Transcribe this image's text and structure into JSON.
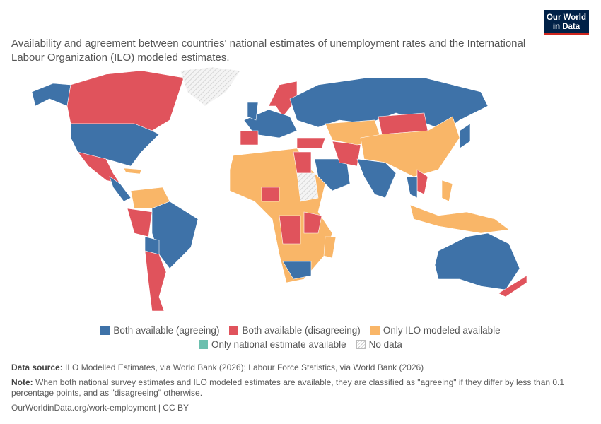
{
  "logo": [
    "Our World",
    "in Data"
  ],
  "title": "Availability and agreement between countries' national estimates of unemployment rates and the International Labour Organization (ILO) modeled estimates.",
  "legend_rows": [
    [
      {
        "label": "Both available (agreeing)",
        "color": "#3e72a8"
      },
      {
        "label": "Both available (disagreeing)",
        "color": "#e0535c"
      },
      {
        "label": "Only ILO modeled available",
        "color": "#f9b668"
      }
    ],
    [
      {
        "label": "Only national estimate available",
        "color": "#6bbfae"
      },
      {
        "label": "No data",
        "pattern": "hatched"
      }
    ]
  ],
  "footer": {
    "source_label": "Data source:",
    "source": "ILO Modelled Estimates, via World Bank (2026); Labour Force Statistics, via World Bank (2026)",
    "note_label": "Note:",
    "note": "When both national survey estimates and ILO modeled estimates are available, they are classified as \"agreeing\" if they differ by less than 0.1 percentage points, and as \"disagreeing\" otherwise.",
    "url": "OurWorldinData.org/work-employment | CC BY"
  }
}
